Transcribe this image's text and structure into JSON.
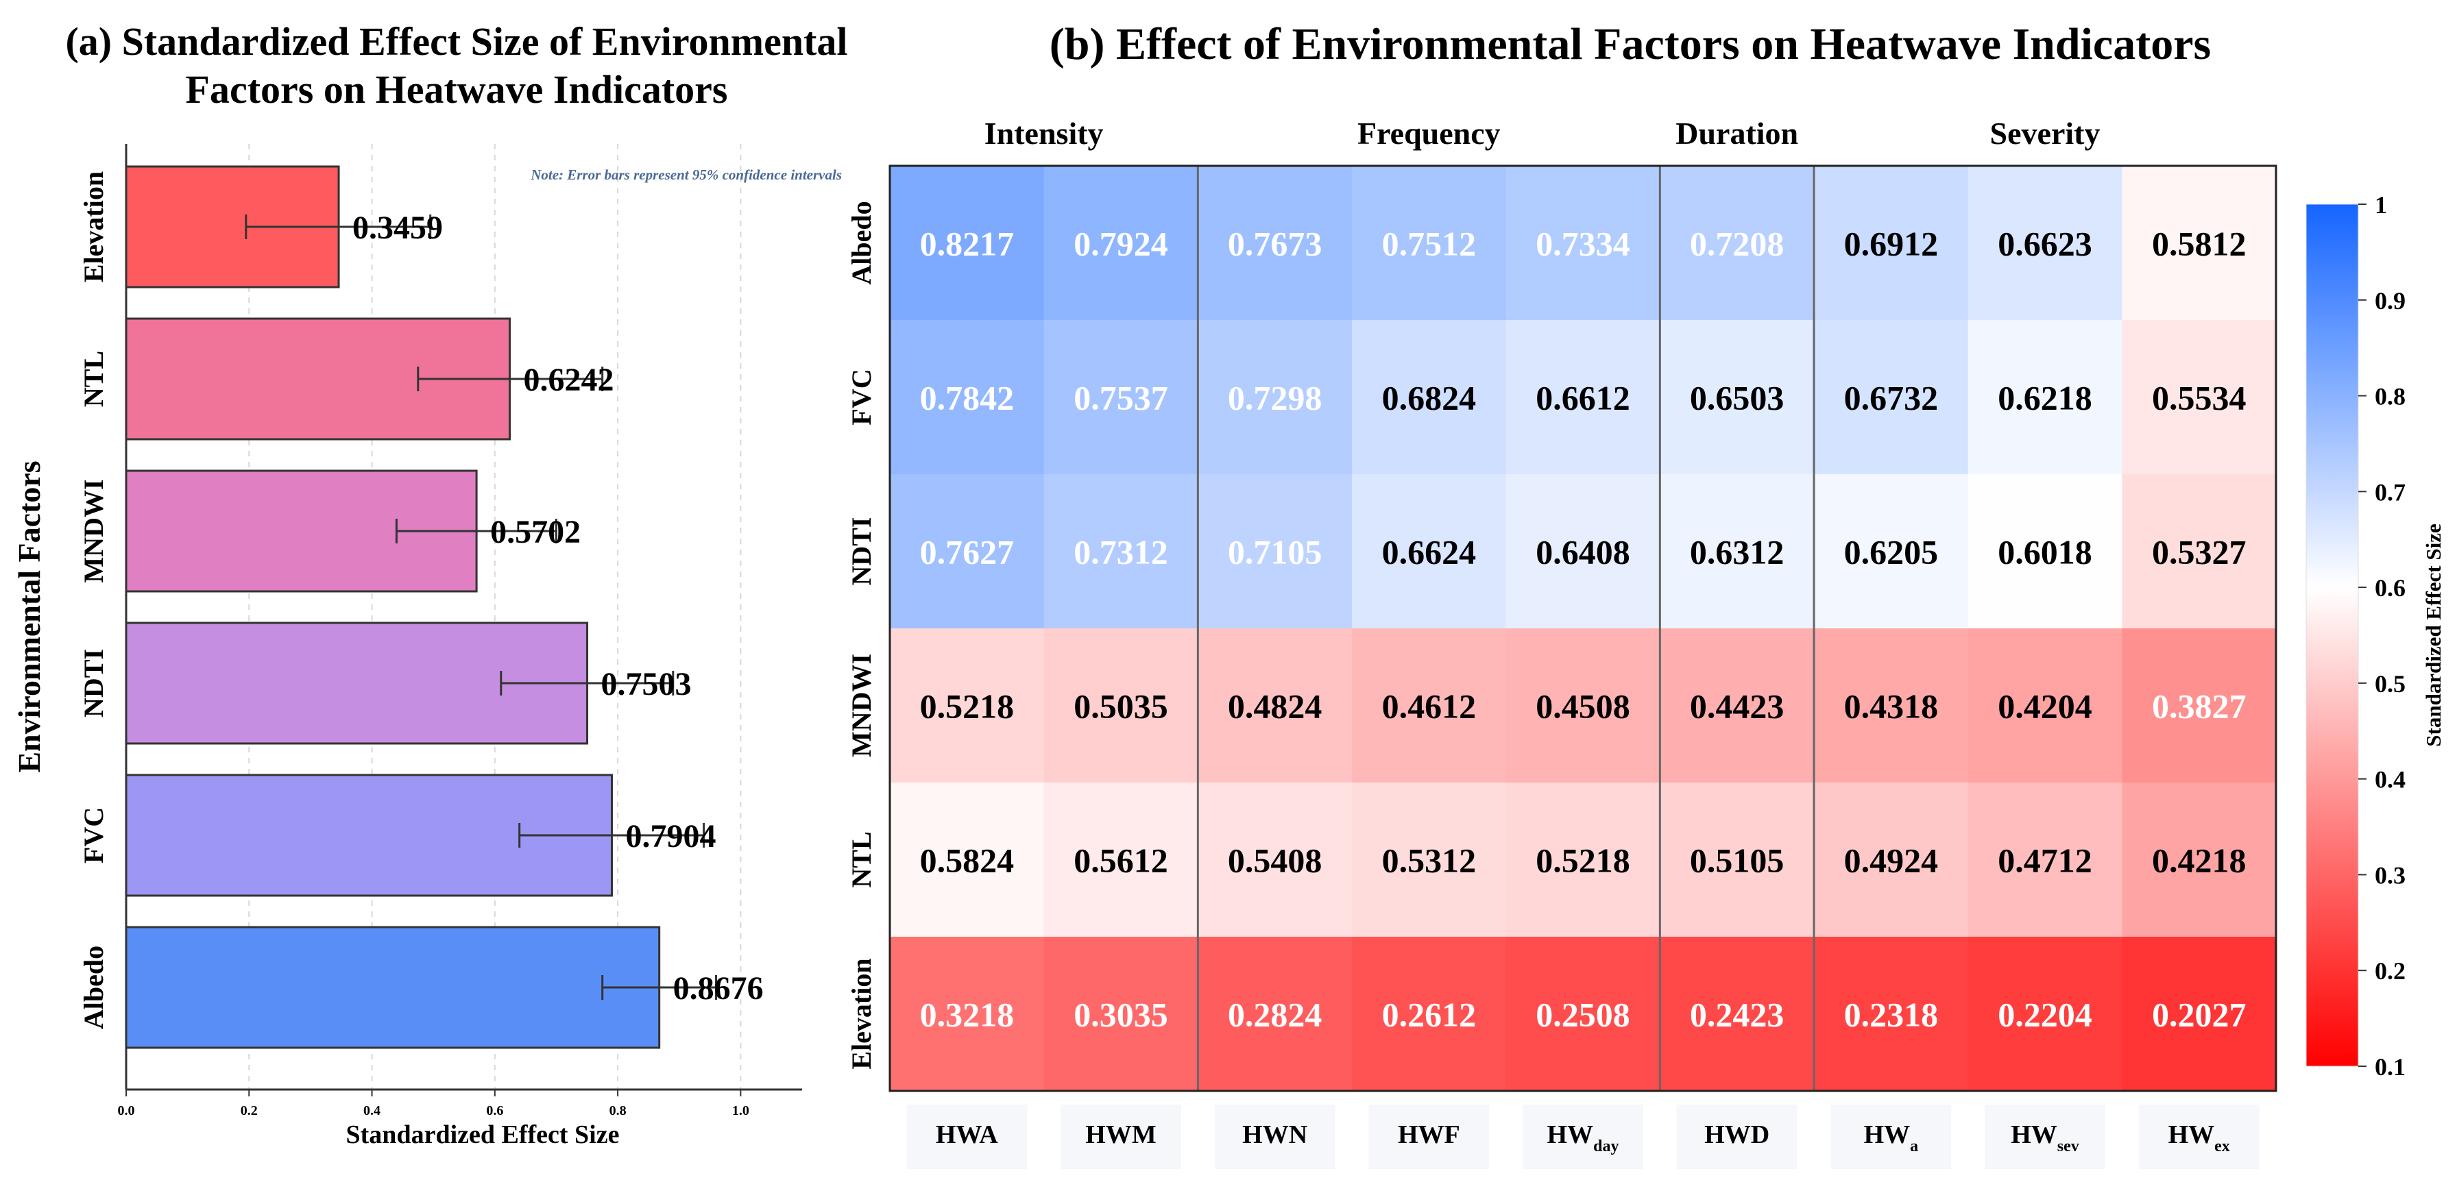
{
  "chart_data": [
    {
      "type": "bar",
      "orientation": "horizontal",
      "title": "(a) Standardized Effect Size of Environmental Factors on Heatwave Indicators",
      "title_lines": [
        "(a) Standardized Effect Size of Environmental",
        "Factors on Heatwave Indicators"
      ],
      "xlabel": "Standardized Effect Size",
      "ylabel": "Environmental Factors",
      "note": "Note: Error bars represent 95% confidence intervals",
      "xlim": [
        0,
        1.1
      ],
      "xticks": [
        0.0,
        0.2,
        0.4,
        0.6,
        0.8,
        1.0
      ],
      "xtick_labels": [
        "0.0",
        "0.2",
        "0.4",
        "0.6",
        "0.8",
        "1.0"
      ],
      "categories": [
        "Elevation",
        "NTL",
        "MNDWI",
        "NDTI",
        "FVC",
        "Albedo"
      ],
      "values": [
        0.3459,
        0.6242,
        0.5702,
        0.7503,
        0.7904,
        0.8676
      ],
      "value_labels": [
        "0.3459",
        "0.6242",
        "0.5702",
        "0.7503",
        "0.7904",
        "0.8676"
      ],
      "ci_low": [
        0.195,
        0.475,
        0.44,
        0.61,
        0.64,
        0.775
      ],
      "ci_high": [
        0.495,
        0.775,
        0.7,
        0.89,
        0.94,
        0.96
      ],
      "colors": [
        "#ff5b5f",
        "#f07399",
        "#e07fc2",
        "#c68ee0",
        "#9c97f4",
        "#5a8ef7"
      ],
      "grid": "vertical dashed"
    },
    {
      "type": "heatmap",
      "title": "(b) Effect of Environmental Factors on Heatwave Indicators",
      "groups": [
        {
          "label": "Intensity",
          "span": [
            0,
            1
          ]
        },
        {
          "label": "Frequency",
          "span": [
            2,
            4
          ]
        },
        {
          "label": "Duration",
          "span": [
            5,
            5
          ]
        },
        {
          "label": "Severity",
          "span": [
            6,
            8
          ]
        }
      ],
      "columns": [
        {
          "base": "HWA",
          "sub": ""
        },
        {
          "base": "HWM",
          "sub": ""
        },
        {
          "base": "HWN",
          "sub": ""
        },
        {
          "base": "HWF",
          "sub": ""
        },
        {
          "base": "HW",
          "sub": "day"
        },
        {
          "base": "HWD",
          "sub": ""
        },
        {
          "base": "HW",
          "sub": "a"
        },
        {
          "base": "HW",
          "sub": "sev"
        },
        {
          "base": "HW",
          "sub": "ex"
        }
      ],
      "rows": [
        "Albedo",
        "FVC",
        "NDTI",
        "MNDWI",
        "NTL",
        "Elevation"
      ],
      "values": [
        [
          0.8217,
          0.7924,
          0.7673,
          0.7512,
          0.7334,
          0.7208,
          0.6912,
          0.6623,
          0.5812
        ],
        [
          0.7842,
          0.7537,
          0.7298,
          0.6824,
          0.6612,
          0.6503,
          0.6732,
          0.6218,
          0.5534
        ],
        [
          0.7627,
          0.7312,
          0.7105,
          0.6624,
          0.6408,
          0.6312,
          0.6205,
          0.6018,
          0.5327
        ],
        [
          0.5218,
          0.5035,
          0.4824,
          0.4612,
          0.4508,
          0.4423,
          0.4318,
          0.4204,
          0.3827
        ],
        [
          0.5824,
          0.5612,
          0.5408,
          0.5312,
          0.5218,
          0.5105,
          0.4924,
          0.4712,
          0.4218
        ],
        [
          0.3218,
          0.3035,
          0.2824,
          0.2612,
          0.2508,
          0.2423,
          0.2318,
          0.2204,
          0.2027
        ]
      ],
      "value_labels": [
        [
          "0.8217",
          "0.7924",
          "0.7673",
          "0.7512",
          "0.7334",
          "0.7208",
          "0.6912",
          "0.6623",
          "0.5812"
        ],
        [
          "0.7842",
          "0.7537",
          "0.7298",
          "0.6824",
          "0.6612",
          "0.6503",
          "0.6732",
          "0.6218",
          "0.5534"
        ],
        [
          "0.7627",
          "0.7312",
          "0.7105",
          "0.6624",
          "0.6408",
          "0.6312",
          "0.6205",
          "0.6018",
          "0.5327"
        ],
        [
          "0.5218",
          "0.5035",
          "0.4824",
          "0.4612",
          "0.4508",
          "0.4423",
          "0.4318",
          "0.4204",
          "0.3827"
        ],
        [
          "0.5824",
          "0.5612",
          "0.5408",
          "0.5312",
          "0.5218",
          "0.5105",
          "0.4924",
          "0.4712",
          "0.4218"
        ],
        [
          "0.3218",
          "0.3035",
          "0.2824",
          "0.2612",
          "0.2508",
          "0.2423",
          "0.2318",
          "0.2204",
          "0.2027"
        ]
      ],
      "colorbar": {
        "label": "Standardized Effect Size",
        "vmin": 0.1,
        "vmax": 1.0,
        "ticks": [
          0.1,
          0.2,
          0.3,
          0.4,
          0.5,
          0.6,
          0.7,
          0.8,
          0.9,
          1.0
        ],
        "tick_labels": [
          "0.1",
          "0.2",
          "0.3",
          "0.4",
          "0.5",
          "0.6",
          "0.7",
          "0.8",
          "0.9",
          "1"
        ],
        "colormap": "red-white-blue",
        "stops": [
          "#ff0000",
          "#ffffff",
          "#1565ff"
        ]
      }
    }
  ]
}
